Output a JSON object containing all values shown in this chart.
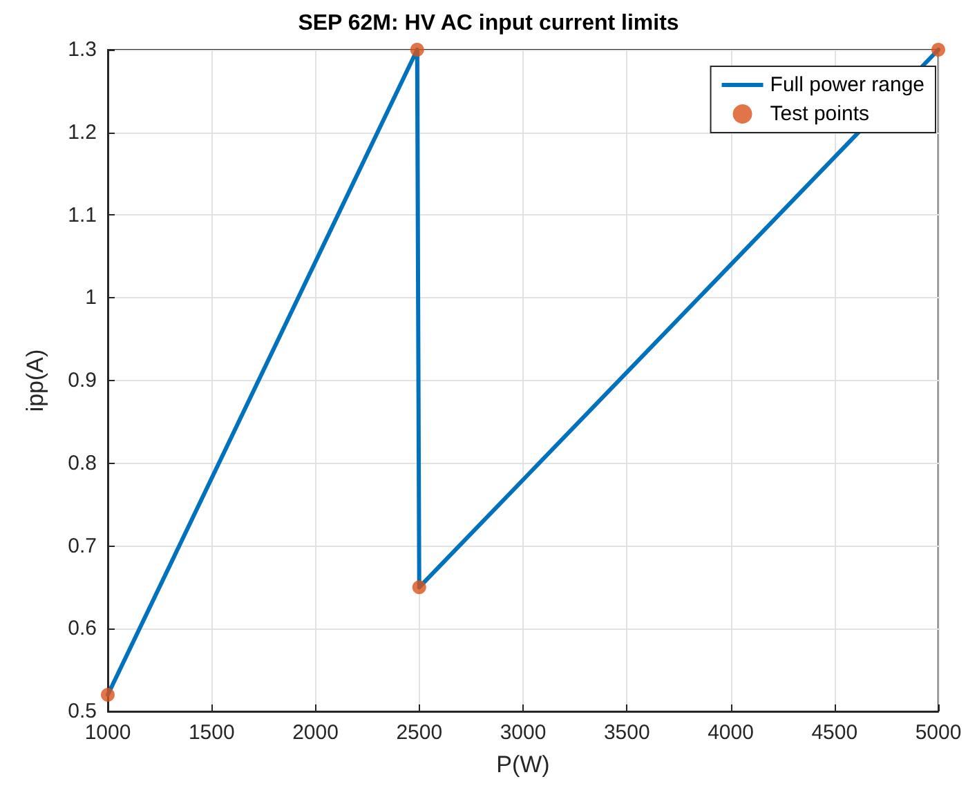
{
  "chart_data": {
    "type": "line",
    "title": "SEP 62M: HV AC input current limits",
    "xlabel": "P(W)",
    "ylabel": "ipp(A)",
    "series": [
      {
        "name": "Full power range",
        "color": "#0072bd",
        "marker": "none",
        "x": [
          1000,
          2490,
          2500,
          5000
        ],
        "values": [
          0.52,
          1.3,
          0.65,
          1.3
        ]
      },
      {
        "name": "Test points",
        "type": "scatter",
        "color": "#d95319",
        "marker": "circle",
        "x": [
          1000,
          2490,
          2500,
          5000
        ],
        "values": [
          0.52,
          1.3,
          0.65,
          1.3
        ]
      }
    ],
    "xlim": [
      1000,
      5000
    ],
    "xticks": [
      1000,
      1500,
      2000,
      2500,
      3000,
      3500,
      4000,
      4500,
      5000
    ],
    "ylim": [
      0.5,
      1.3
    ],
    "yticks": [
      0.5,
      0.6,
      0.7,
      0.8,
      0.9,
      1,
      1.1,
      1.2,
      1.3
    ],
    "grid": true,
    "legend": "top right"
  }
}
